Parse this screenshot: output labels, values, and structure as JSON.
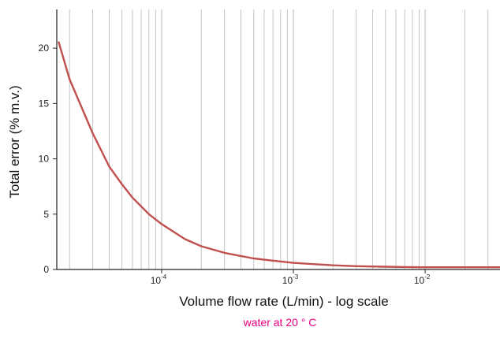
{
  "chart_data": {
    "type": "line",
    "title": "",
    "xlabel": "Volume flow rate (L/min) - log scale",
    "ylabel": "Total error (%  m.v.)",
    "annotation": "water at 20 ° C",
    "x_scale": "log",
    "xlim": [
      1.6e-05,
      0.037
    ],
    "ylim": [
      0,
      23.5
    ],
    "x_ticks": [
      {
        "value": 0.0001,
        "base": "10",
        "exp": "-4"
      },
      {
        "value": 0.001,
        "base": "10",
        "exp": "-3"
      },
      {
        "value": 0.01,
        "base": "10",
        "exp": "-2"
      }
    ],
    "y_ticks": [
      0,
      5,
      10,
      15,
      20
    ],
    "grid": "vertical",
    "series": [
      {
        "x": [
          1.65e-05,
          2e-05,
          2.5e-05,
          3e-05,
          4e-05,
          5e-05,
          6e-05,
          8e-05,
          0.0001,
          0.00015,
          0.0002,
          0.0003,
          0.0005,
          0.0007,
          0.001,
          0.002,
          0.003,
          0.005,
          0.007,
          0.01,
          0.02,
          0.037
        ],
        "y": [
          20.6,
          17.2,
          14.5,
          12.3,
          9.3,
          7.7,
          6.5,
          5.0,
          4.1,
          2.75,
          2.1,
          1.5,
          1.0,
          0.8,
          0.6,
          0.38,
          0.3,
          0.25,
          0.22,
          0.2,
          0.2,
          0.2
        ]
      }
    ],
    "colors": {
      "line": "#c0504d",
      "grid": "#b9bec4",
      "annotation": "#e6007e",
      "axis": "#222222"
    }
  }
}
